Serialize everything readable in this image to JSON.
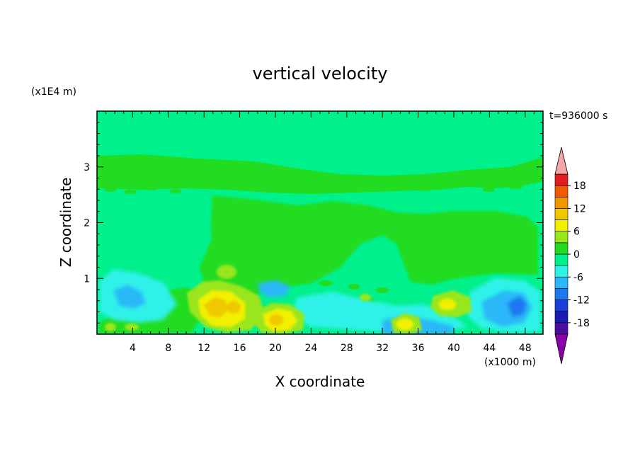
{
  "chart_data": {
    "type": "heatmap",
    "title": "vertical velocity",
    "xlabel": "X coordinate",
    "ylabel": "Z coordinate",
    "x_unit": "(x1000 m)",
    "y_unit": "(x1E4 m)",
    "time_label": "t=936000 s",
    "xlim": [
      0,
      50
    ],
    "ylim": [
      0,
      4
    ],
    "x_ticks": [
      4,
      8,
      12,
      16,
      20,
      24,
      28,
      32,
      36,
      40,
      44,
      48
    ],
    "x_tick_labels": [
      "4",
      "8",
      "12",
      "16",
      "20",
      "24",
      "28",
      "32",
      "36",
      "40",
      "44",
      "48"
    ],
    "y_ticks": [
      1,
      2,
      3
    ],
    "y_tick_labels": [
      "1",
      "2",
      "3"
    ],
    "colorbar": {
      "levels": [
        -21,
        -18,
        -15,
        -12,
        -9,
        -6,
        -3,
        0,
        3,
        6,
        9,
        12,
        15,
        18,
        21
      ],
      "tick_values": [
        18,
        12,
        6,
        0,
        -6,
        -12,
        -18
      ],
      "tick_labels": [
        "18",
        "12",
        "6",
        "0",
        "-6",
        "-12",
        "-18"
      ],
      "over_color": "#f4a6a6",
      "under_color": "#8b00a8",
      "colors": [
        "#4a0da0",
        "#1a1ab4",
        "#1a3cd8",
        "#1f78f0",
        "#2ab8f8",
        "#2ef2e8",
        "#00f08c",
        "#22dc22",
        "#9ae61a",
        "#f0f000",
        "#f0c800",
        "#f09600",
        "#f05a00",
        "#e01e1e"
      ]
    },
    "background_value": 0,
    "regions": [
      {
        "feature": "upper-weak-updraft-band",
        "x": [
          0,
          50
        ],
        "z": [
          2.5,
          3.2
        ],
        "value": 1.5
      },
      {
        "feature": "mid-level-updraft",
        "x": [
          13,
          47
        ],
        "z": [
          1.0,
          2.5
        ],
        "value": 1.5
      },
      {
        "feature": "low-level-updraft",
        "x": [
          11,
          20
        ],
        "z": [
          0.3,
          1.2
        ],
        "value": 5
      },
      {
        "feature": "updraft-core",
        "x": [
          13,
          17
        ],
        "z": [
          0.3,
          0.6
        ],
        "value": 10
      },
      {
        "feature": "updraft-core",
        "x": [
          19,
          21
        ],
        "z": [
          0.2,
          0.4
        ],
        "value": 10
      },
      {
        "feature": "updraft-core",
        "x": [
          33,
          36
        ],
        "z": [
          0.1,
          0.3
        ],
        "value": 7
      },
      {
        "feature": "updraft-core",
        "x": [
          38,
          41
        ],
        "z": [
          0.3,
          0.5
        ],
        "value": 5
      },
      {
        "feature": "downdraft",
        "x": [
          1,
          6
        ],
        "z": [
          0.3,
          0.9
        ],
        "value": -5
      },
      {
        "feature": "downdraft",
        "x": [
          44,
          49
        ],
        "z": [
          0.2,
          0.8
        ],
        "value": -7
      },
      {
        "feature": "downdraft-core",
        "x": [
          46,
          48
        ],
        "z": [
          0.3,
          0.6
        ],
        "value": -11
      }
    ]
  }
}
